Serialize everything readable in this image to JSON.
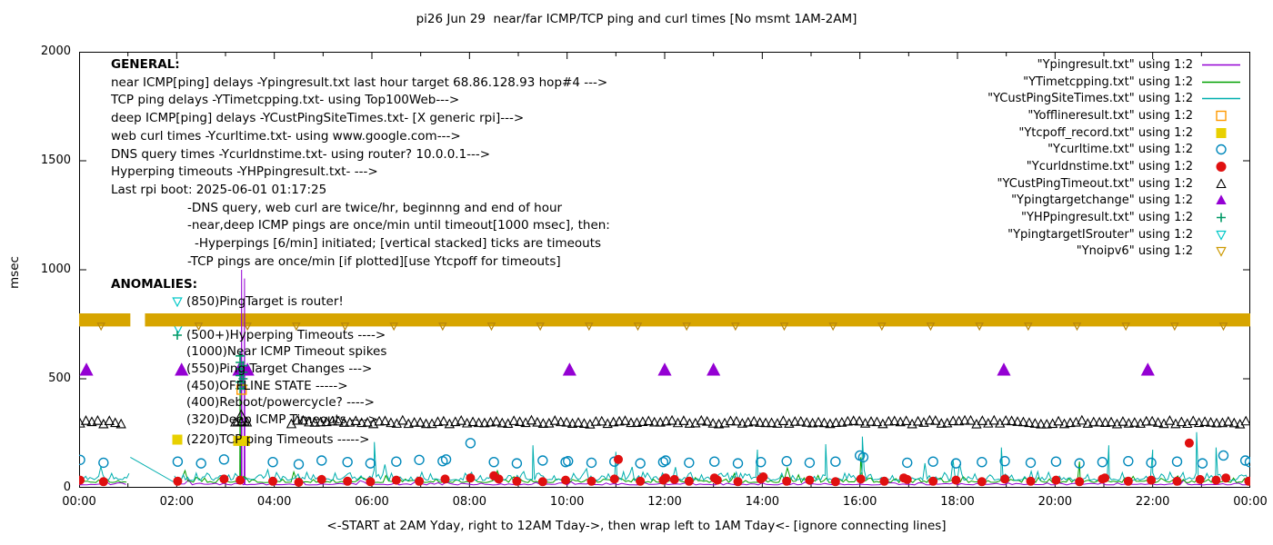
{
  "title": "pi26 Jun 29  near/far ICMP/TCP ping and curl times [No msmt 1AM-2AM]",
  "ylabel": "msec",
  "xlabel": "<-START at 2AM Yday, right to 12AM Tday->, then wrap left to 1AM Tday<- [ignore connecting lines]",
  "axes": {
    "y_ticks": [
      0,
      500,
      1000,
      1500,
      2000
    ],
    "x_ticks": [
      {
        "hour": 0,
        "label": "00:00"
      },
      {
        "hour": 2,
        "label": "02:00"
      },
      {
        "hour": 4,
        "label": "04:00"
      },
      {
        "hour": 6,
        "label": "06:00"
      },
      {
        "hour": 8,
        "label": "08:00"
      },
      {
        "hour": 10,
        "label": "10:00"
      },
      {
        "hour": 12,
        "label": "12:00"
      },
      {
        "hour": 14,
        "label": "14:00"
      },
      {
        "hour": 16,
        "label": "16:00"
      },
      {
        "hour": 18,
        "label": "18:00"
      },
      {
        "hour": 20,
        "label": "20:00"
      },
      {
        "hour": 22,
        "label": "22:00"
      },
      {
        "hour": 24,
        "label": "00:00"
      }
    ],
    "x_minor_every_hour": 1
  },
  "legend": [
    {
      "label": "\"Ypingresult.txt\" using 1:2",
      "marker": "line",
      "color": "#9400D3"
    },
    {
      "label": "\"YTimetcpping.txt\" using 1:2",
      "marker": "line",
      "color": "#00A000"
    },
    {
      "label": "\"YCustPingSiteTimes.txt\" using 1:2",
      "marker": "line",
      "color": "#00AEAE"
    },
    {
      "label": "\"Yofflineresult.txt\" using 1:2",
      "marker": "square-open",
      "color": "#FF9900"
    },
    {
      "label": "\"Ytcpoff_record.txt\" using 1:2",
      "marker": "square-filled",
      "color": "#E8D000"
    },
    {
      "label": "\"Ycurltime.txt\" using 1:2",
      "marker": "circle-open",
      "color": "#0088BB"
    },
    {
      "label": "\"Ycurldnstime.txt\" using 1:2",
      "marker": "circle-filled",
      "color": "#E01010"
    },
    {
      "label": "\"YCustPingTimeout.txt\" using 1:2",
      "marker": "triangle-up-open",
      "color": "#000000"
    },
    {
      "label": "\"Ypingtargetchange\" using 1:2",
      "marker": "triangle-up-filled",
      "color": "#9400D3"
    },
    {
      "label": "\"YHPpingresult.txt\" using 1:2",
      "marker": "plus",
      "color": "#009966"
    },
    {
      "label": "\"YpingtargetISrouter\" using 1:2",
      "marker": "triangle-down-open",
      "color": "#00C8C8"
    },
    {
      "label": "\"Ynoipv6\" using 1:2",
      "marker": "triangle-down-open",
      "color": "#CC9900"
    }
  ],
  "general": {
    "header": "GENERAL:",
    "lines": [
      {
        "text": "near ICMP[ping] delays -Ypingresult.txt last hour target 68.86.128.93 hop#4 --->",
        "indent": 0
      },
      {
        "text": "TCP ping delays -YTimetcpping.txt- using Top100Web--->",
        "indent": 0
      },
      {
        "text": "deep ICMP[ping] delays -YCustPingSiteTimes.txt- [X generic rpi]--->",
        "indent": 0
      },
      {
        "text": "web curl times -Ycurltime.txt- using www.google.com--->",
        "indent": 0
      },
      {
        "text": "DNS query times -Ycurldnstime.txt- using router? 10.0.0.1--->",
        "indent": 0
      },
      {
        "text": "Hyperping timeouts -YHPpingresult.txt- --->",
        "indent": 0
      },
      {
        "text": "Last rpi boot: 2025-06-01 01:17:25",
        "indent": 0
      },
      {
        "text": "-DNS query, web curl are twice/hr, beginnng and end of hour",
        "indent": 1
      },
      {
        "text": "-near,deep ICMP pings are once/min until timeout[1000 msec], then:",
        "indent": 1
      },
      {
        "text": "-Hyperpings [6/min] initiated; [vertical stacked] ticks are timeouts",
        "indent": 2
      },
      {
        "text": "-TCP pings are once/min [if plotted][use Ytcpoff for timeouts]",
        "indent": 1
      }
    ]
  },
  "anomalies": {
    "header": "ANOMALIES:",
    "lines": [
      {
        "text": "(850)PingTarget is router!",
        "icon": "triangle-down-open",
        "icon_color": "#00C8C8"
      },
      {
        "text": "",
        "spacer": true
      },
      {
        "text": "(500+)Hyperping Timeouts ---->",
        "icon": "plus",
        "icon_color": "#009966"
      },
      {
        "text": "(1000)Near ICMP Timeout spikes"
      },
      {
        "text": "(550)Ping Target Changes --->"
      },
      {
        "text": "(450)OFFLINE STATE ----->"
      },
      {
        "text": "(400)Reboot/powercycle? ---->"
      },
      {
        "text": "(320)Deep ICMP Timeouts ---->"
      },
      {
        "text": "(220)TCP ping Timeouts ----->",
        "icon": "square-filled",
        "icon_color": "#E8D000",
        "gap_before": true
      }
    ]
  },
  "chart_data": {
    "type": "scatter",
    "x_unit": "time of day (hours 00:00-24:00)",
    "xlim": [
      0,
      24
    ],
    "ylim": [
      0,
      2000
    ],
    "no_measurement_window_hours": [
      1,
      2
    ],
    "series": [
      {
        "name": "YpingtargetISrouter",
        "kind": "markers",
        "marker": "triangle-down-open",
        "color": "#00C8C8",
        "size": 6,
        "points": [
          [
            2.03,
            735
          ]
        ]
      },
      {
        "name": "Ynoipv6",
        "kind": "band",
        "color": "#D7A500",
        "y_center": 770,
        "y_half": 30,
        "segments": [
          [
            0,
            1.05
          ],
          [
            1.35,
            24
          ]
        ],
        "tick_marker": "triangle-down-open",
        "tick_color": "#B8860B",
        "tick_y": 742,
        "tick_every_h": 1,
        "tick_offset_h": 0.45,
        "tick_size": 4
      },
      {
        "name": "Ypingresult.txt",
        "kind": "line",
        "color": "#9400D3",
        "baseline": {
          "seed": 11,
          "points": 300,
          "base": 13,
          "amp": 14
        },
        "gap": [
          1.0,
          2.0
        ],
        "vspikes": [
          {
            "x": 3.33,
            "y": 1000
          },
          {
            "x": 3.39,
            "y": 960
          }
        ]
      },
      {
        "name": "YTimetcpping.txt",
        "kind": "line",
        "color": "#00A000",
        "baseline": {
          "seed": 23,
          "points": 420,
          "base": 24,
          "amp": 30
        },
        "gap": [
          1.0,
          2.0
        ],
        "vspikes": [
          {
            "x": 3.3,
            "y": 620
          }
        ],
        "spikes": [
          [
            16.02,
            140
          ],
          [
            20.5,
            120
          ]
        ]
      },
      {
        "name": "YCustPingSiteTimes.txt",
        "kind": "line",
        "color": "#00AEAE",
        "baseline": {
          "seed": 37,
          "points": 540,
          "base": 34,
          "amp": 46
        },
        "gap": [
          1.05,
          1.95
        ],
        "bridge": [
          [
            1.05,
            140
          ],
          [
            1.95,
            25
          ]
        ],
        "spikes": [
          [
            6.05,
            210
          ],
          [
            9.3,
            195
          ],
          [
            11.0,
            165
          ],
          [
            13.9,
            175
          ],
          [
            15.3,
            200
          ],
          [
            16.05,
            235
          ],
          [
            18.9,
            185
          ],
          [
            21.1,
            195
          ],
          [
            22.0,
            175
          ],
          [
            22.9,
            255
          ],
          [
            23.3,
            185
          ]
        ]
      },
      {
        "name": "YCustPingTimeout.txt",
        "kind": "markers",
        "marker": "triangle-up-open",
        "color": "#000000",
        "size": 5,
        "y": 300,
        "jitter": 9,
        "seed": 7,
        "x_ranges": [
          {
            "from": 0.02,
            "to": 0.95,
            "step": 0.12
          },
          {
            "from": 4.35,
            "to": 23.98,
            "step": 0.12
          }
        ],
        "points": [
          [
            3.2,
            300
          ],
          [
            3.32,
            300
          ],
          [
            3.44,
            300
          ]
        ],
        "big_point": {
          "x": 3.32,
          "y": 318,
          "size": 9
        }
      },
      {
        "name": "Ycurltime.txt",
        "kind": "markers",
        "marker": "circle-open",
        "color": "#0088BB",
        "size": 5,
        "points": [
          [
            0.02,
            128
          ],
          [
            0.5,
            115
          ],
          [
            2.02,
            120
          ],
          [
            2.5,
            112
          ],
          [
            2.97,
            130
          ],
          [
            3.97,
            118
          ],
          [
            4.5,
            108
          ],
          [
            4.97,
            125
          ],
          [
            5.5,
            118
          ],
          [
            5.97,
            112
          ],
          [
            6.5,
            120
          ],
          [
            6.97,
            128
          ],
          [
            7.45,
            122
          ],
          [
            7.52,
            130
          ],
          [
            8.02,
            205
          ],
          [
            8.5,
            118
          ],
          [
            8.97,
            112
          ],
          [
            9.5,
            125
          ],
          [
            9.97,
            118
          ],
          [
            10.02,
            122
          ],
          [
            10.5,
            115
          ],
          [
            10.97,
            120
          ],
          [
            11.5,
            112
          ],
          [
            11.97,
            118
          ],
          [
            12.02,
            125
          ],
          [
            12.5,
            115
          ],
          [
            13.02,
            120
          ],
          [
            13.5,
            112
          ],
          [
            13.97,
            118
          ],
          [
            14.5,
            122
          ],
          [
            14.97,
            115
          ],
          [
            15.5,
            120
          ],
          [
            16.0,
            148
          ],
          [
            16.07,
            140
          ],
          [
            16.97,
            115
          ],
          [
            17.5,
            120
          ],
          [
            17.97,
            112
          ],
          [
            18.5,
            118
          ],
          [
            18.97,
            122
          ],
          [
            19.5,
            115
          ],
          [
            20.02,
            120
          ],
          [
            20.5,
            112
          ],
          [
            20.97,
            118
          ],
          [
            21.5,
            122
          ],
          [
            21.97,
            115
          ],
          [
            22.5,
            120
          ],
          [
            23.02,
            112
          ],
          [
            23.45,
            148
          ],
          [
            23.9,
            125
          ],
          [
            23.99,
            118
          ]
        ]
      },
      {
        "name": "Ycurldnstime.txt",
        "kind": "markers",
        "marker": "circle-filled",
        "color": "#E01010",
        "size": 4.5,
        "points": [
          [
            0.02,
            35
          ],
          [
            0.5,
            28
          ],
          [
            2.02,
            30
          ],
          [
            2.97,
            40
          ],
          [
            3.3,
            35
          ],
          [
            3.97,
            30
          ],
          [
            4.5,
            25
          ],
          [
            4.97,
            38
          ],
          [
            5.5,
            30
          ],
          [
            5.97,
            28
          ],
          [
            6.5,
            35
          ],
          [
            6.97,
            30
          ],
          [
            7.5,
            40
          ],
          [
            8.02,
            45
          ],
          [
            8.5,
            55
          ],
          [
            8.6,
            40
          ],
          [
            8.97,
            30
          ],
          [
            9.5,
            28
          ],
          [
            9.97,
            35
          ],
          [
            10.5,
            30
          ],
          [
            10.97,
            40
          ],
          [
            11.05,
            130
          ],
          [
            11.5,
            30
          ],
          [
            11.97,
            35
          ],
          [
            12.02,
            45
          ],
          [
            12.2,
            38
          ],
          [
            12.5,
            30
          ],
          [
            13.02,
            45
          ],
          [
            13.08,
            35
          ],
          [
            13.5,
            28
          ],
          [
            13.97,
            40
          ],
          [
            14.02,
            50
          ],
          [
            14.5,
            30
          ],
          [
            14.97,
            35
          ],
          [
            15.5,
            28
          ],
          [
            16.02,
            40
          ],
          [
            16.5,
            30
          ],
          [
            16.9,
            45
          ],
          [
            16.97,
            38
          ],
          [
            17.5,
            30
          ],
          [
            17.97,
            35
          ],
          [
            18.5,
            28
          ],
          [
            18.97,
            40
          ],
          [
            19.5,
            30
          ],
          [
            20.02,
            35
          ],
          [
            20.5,
            28
          ],
          [
            20.97,
            40
          ],
          [
            21.02,
            45
          ],
          [
            21.5,
            30
          ],
          [
            21.97,
            35
          ],
          [
            22.5,
            30
          ],
          [
            22.75,
            205
          ],
          [
            22.97,
            38
          ],
          [
            23.3,
            35
          ],
          [
            23.5,
            45
          ],
          [
            23.97,
            30
          ]
        ]
      },
      {
        "name": "Ypingtargetchange",
        "kind": "markers",
        "marker": "triangle-up-filled",
        "color": "#9400D3",
        "size": 7,
        "points": [
          [
            0.15,
            540
          ],
          [
            2.1,
            540
          ],
          [
            3.28,
            540
          ],
          [
            3.45,
            540
          ],
          [
            10.05,
            540
          ],
          [
            12.0,
            540
          ],
          [
            13.0,
            540
          ],
          [
            18.95,
            540
          ],
          [
            21.9,
            540
          ]
        ]
      },
      {
        "name": "YHPpingresult.txt",
        "kind": "markers",
        "marker": "plus",
        "color": "#009966",
        "size": 5,
        "points": [
          [
            3.3,
            455
          ],
          [
            3.3,
            485
          ],
          [
            3.3,
            515
          ],
          [
            3.3,
            545
          ],
          [
            3.3,
            575
          ],
          [
            3.3,
            605
          ],
          [
            3.36,
            470
          ],
          [
            3.36,
            500
          ],
          [
            3.36,
            530
          ],
          [
            3.36,
            560
          ]
        ]
      },
      {
        "name": "Ytcpoff_record.txt",
        "kind": "markers",
        "marker": "square-filled",
        "color": "#E8D000",
        "size": 5,
        "points": [
          [
            3.26,
            215
          ],
          [
            3.4,
            215
          ]
        ]
      },
      {
        "name": "Yofflineresult.txt",
        "kind": "markers",
        "marker": "square-open",
        "color": "#FF9900",
        "size": 5,
        "points": [
          [
            3.33,
            450
          ]
        ]
      }
    ]
  }
}
